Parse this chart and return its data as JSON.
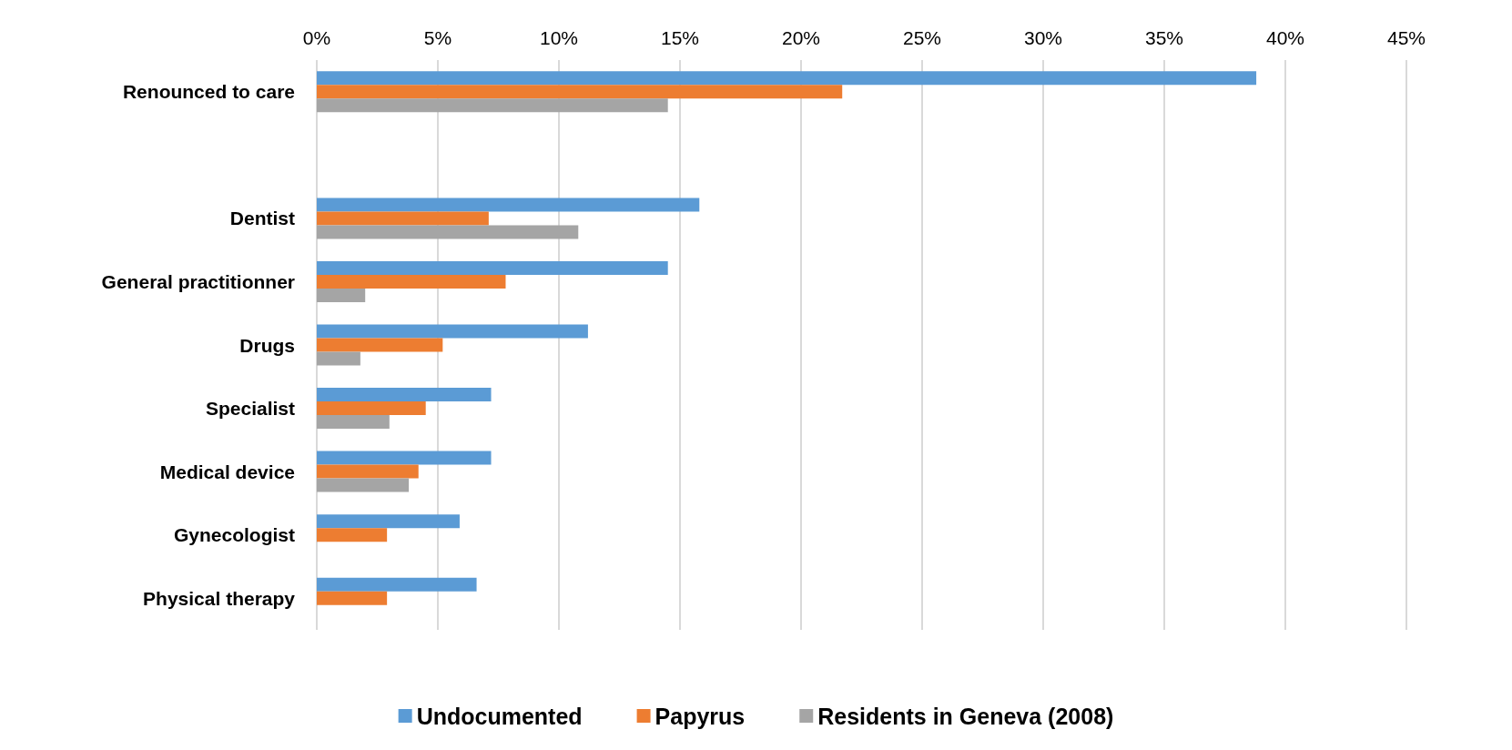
{
  "chart_data": {
    "type": "bar",
    "orientation": "horizontal",
    "categories": [
      "Renounced to care",
      null,
      "Dentist",
      "General practitionner",
      "Drugs",
      "Specialist",
      "Medical device",
      "Gynecologist",
      "Physical therapy"
    ],
    "series": [
      {
        "name": "Undocumented",
        "color": "#5b9bd5",
        "values": [
          38.8,
          null,
          15.8,
          14.5,
          11.2,
          7.2,
          7.2,
          5.9,
          6.6
        ]
      },
      {
        "name": "Papyrus",
        "color": "#ed7d31",
        "values": [
          21.7,
          null,
          7.1,
          7.8,
          5.2,
          4.5,
          4.2,
          2.9,
          2.9
        ]
      },
      {
        "name": "Residents in Geneva (2008)",
        "color": "#a5a5a5",
        "values": [
          14.5,
          null,
          10.8,
          2.0,
          1.8,
          3.0,
          3.8,
          null,
          null
        ]
      }
    ],
    "xlim": [
      0,
      45
    ],
    "xticks": [
      {
        "value": 0,
        "label": "0%"
      },
      {
        "value": 5,
        "label": "5%"
      },
      {
        "value": 10,
        "label": "10%"
      },
      {
        "value": 15,
        "label": "15%"
      },
      {
        "value": 20,
        "label": "20%"
      },
      {
        "value": 25,
        "label": "25%"
      },
      {
        "value": 30,
        "label": "30%"
      },
      {
        "value": 35,
        "label": "35%"
      },
      {
        "value": 40,
        "label": "40%"
      },
      {
        "value": 45,
        "label": "45%"
      }
    ],
    "grid": "x",
    "legend": "bottom"
  }
}
